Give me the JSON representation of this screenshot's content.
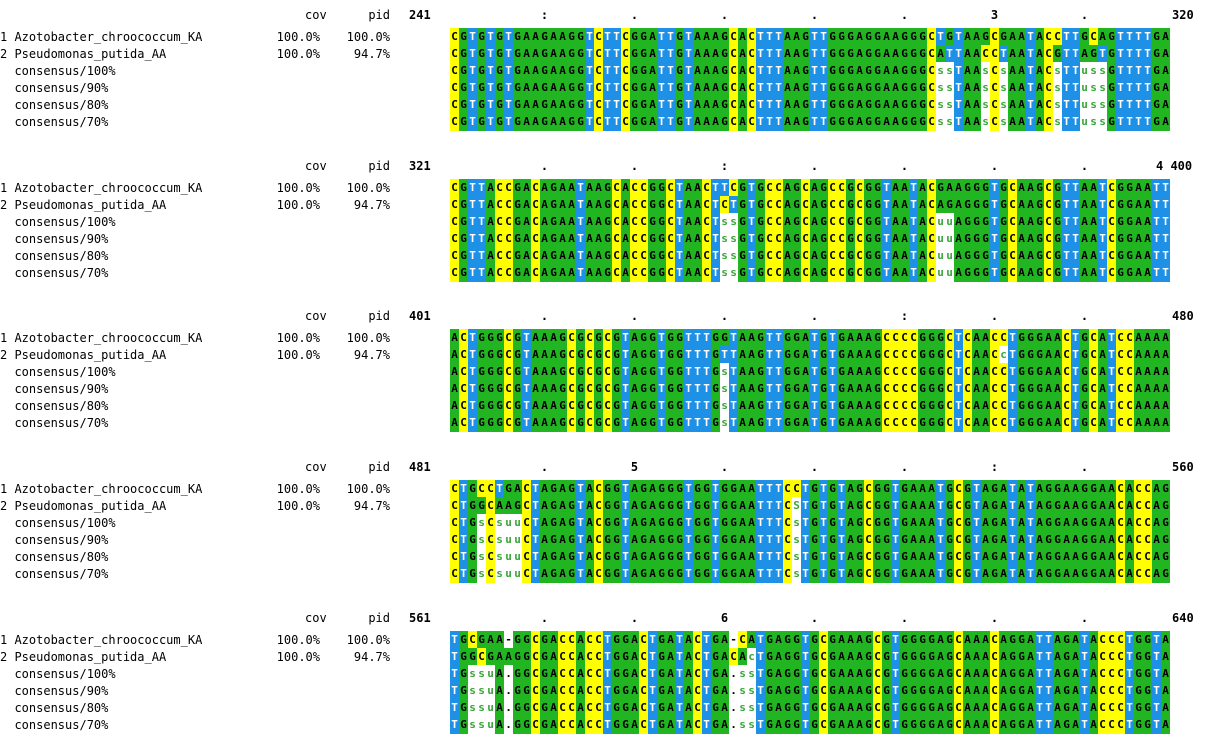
{
  "column_headers": {
    "cov": "cov",
    "pid": "pid"
  },
  "sequences": [
    {
      "label": "1 Azotobacter_chroococcum_KA",
      "cov": "100.0%",
      "pid": "100.0%"
    },
    {
      "label": "2 Pseudomonas_putida_AA",
      "cov": "100.0%",
      "pid": "94.7%"
    }
  ],
  "consensus_labels": [
    "consensus/100%",
    "consensus/90%",
    "consensus/80%",
    "consensus/70%"
  ],
  "blocks": [
    {
      "start": "241",
      "end": "320",
      "ruler": [
        {
          "pos": 11,
          "mark": ":"
        },
        {
          "pos": 21,
          "mark": "."
        },
        {
          "pos": 31,
          "mark": "."
        },
        {
          "pos": 41,
          "mark": "."
        },
        {
          "pos": 51,
          "mark": "."
        },
        {
          "pos": 61,
          "mark": "3"
        },
        {
          "pos": 71,
          "mark": "."
        }
      ],
      "rows": [
        "CGTGTGTGAAGAAGGTCTTCGGATTGTAAAGCACTTTAAGTTGGGAGGAAGGGCTGTAAGCGAATACCTTGCAGTTTTGA",
        "CGTGTGTGAAGAAGGTCTTCGGATTGTAAAGCACTTTAAGTTGGGAGGAAGGGCATTAACCTAATACGTTAGTGTTTTGA",
        "CGTGTGTGAAGAAGGTCTTCGGATTGTAAAGCACTTTAAGTTGGGAGGAAGGGCssTAAsCsAATACsTTussGTTTTGA",
        "CGTGTGTGAAGAAGGTCTTCGGATTGTAAAGCACTTTAAGTTGGGAGGAAGGGCssTAAsCsAATACsTTussGTTTTGA",
        "CGTGTGTGAAGAAGGTCTTCGGATTGTAAAGCACTTTAAGTTGGGAGGAAGGGCssTAAsCsAATACsTTussGTTTTGA",
        "CGTGTGTGAAGAAGGTCTTCGGATTGTAAAGCACTTTAAGTTGGGAGGAAGGGCssTAAsCsAATACsTTussGTTTTGA"
      ]
    },
    {
      "start": "321",
      "end": "4 400",
      "ruler": [
        {
          "pos": 11,
          "mark": "."
        },
        {
          "pos": 21,
          "mark": "."
        },
        {
          "pos": 31,
          "mark": ":"
        },
        {
          "pos": 41,
          "mark": "."
        },
        {
          "pos": 51,
          "mark": "."
        },
        {
          "pos": 61,
          "mark": "."
        },
        {
          "pos": 71,
          "mark": "."
        }
      ],
      "rows": [
        "CGTTACCGACAGAATAAGCACCGGCTAACTTCGTGCCAGCAGCCGCGGTAATACGAAGGGTGCAAGCGTTAATCGGAATT",
        "CGTTACCGACAGAATAAGCACCGGCTAACTCTGTGCCAGCAGCCGCGGTAATACAGAGGGTGCAAGCGTTAATCGGAATT",
        "CGTTACCGACAGAATAAGCACCGGCTAACTssGTGCCAGCAGCCGCGGTAATACuuAGGGTGCAAGCGTTAATCGGAATT",
        "CGTTACCGACAGAATAAGCACCGGCTAACTssGTGCCAGCAGCCGCGGTAATACuuAGGGTGCAAGCGTTAATCGGAATT",
        "CGTTACCGACAGAATAAGCACCGGCTAACTssGTGCCAGCAGCCGCGGTAATACuuAGGGTGCAAGCGTTAATCGGAATT",
        "CGTTACCGACAGAATAAGCACCGGCTAACTssGTGCCAGCAGCCGCGGTAATACuuAGGGTGCAAGCGTTAATCGGAATT"
      ]
    },
    {
      "start": "401",
      "end": "480",
      "ruler": [
        {
          "pos": 11,
          "mark": "."
        },
        {
          "pos": 21,
          "mark": "."
        },
        {
          "pos": 31,
          "mark": "."
        },
        {
          "pos": 41,
          "mark": "."
        },
        {
          "pos": 51,
          "mark": ":"
        },
        {
          "pos": 61,
          "mark": "."
        },
        {
          "pos": 71,
          "mark": "."
        }
      ],
      "rows": [
        "ACTGGGCGTAAAGCGCGCGTAGGTGGTTTGGTAAGTTGGATGTGAAAGCCCCGGGCTCAACCTGGGAACTGCATCCAAAA",
        "ACTGGGCGTAAAGCGCGCGTAGGTGGTTTGTTAAGTTGGATGTGAAAGCCCCGGGCTCAACcTGGGAACTGCATCCAAAA",
        "ACTGGGCGTAAAGCGCGCGTAGGTGGTTTGsTAAGTTGGATGTGAAAGCCCCGGGCTCAACCTGGGAACTGCATCCAAAA",
        "ACTGGGCGTAAAGCGCGCGTAGGTGGTTTGsTAAGTTGGATGTGAAAGCCCCGGGCTCAACCTGGGAACTGCATCCAAAA",
        "ACTGGGCGTAAAGCGCGCGTAGGTGGTTTGsTAAGTTGGATGTGAAAGCCCCGGGCTCAACCTGGGAACTGCATCCAAAA",
        "ACTGGGCGTAAAGCGCGCGTAGGTGGTTTGsTAAGTTGGATGTGAAAGCCCCGGGCTCAACCTGGGAACTGCATCCAAAA"
      ]
    },
    {
      "start": "481",
      "end": "560",
      "ruler": [
        {
          "pos": 11,
          "mark": "."
        },
        {
          "pos": 21,
          "mark": "5"
        },
        {
          "pos": 31,
          "mark": "."
        },
        {
          "pos": 41,
          "mark": "."
        },
        {
          "pos": 51,
          "mark": "."
        },
        {
          "pos": 61,
          "mark": ":"
        },
        {
          "pos": 71,
          "mark": "."
        }
      ],
      "rows": [
        "CTGCCTGACTAGAGTACGGTAGAGGGTGGTGGAATTTCCTGTGTAGCGGTGAAATGCGTAGATATAGGAAGGAACACCAG",
        "CTGGCAAGCTAGAGTACGGTAGAGGGTGGTGGAATTTCSTGTGTAGCGGTGAAATGCGTAGATATAGGAAGGAACACCAG",
        "CTGsCsuuCTAGAGTACGGTAGAGGGTGGTGGAATTTCsTGTGTAGCGGTGAAATGCGTAGATATAGGAAGGAACACCAG",
        "CTGsCsuuCTAGAGTACGGTAGAGGGTGGTGGAATTTCsTGTGTAGCGGTGAAATGCGTAGATATAGGAAGGAACACCAG",
        "CTGsCsuuCTAGAGTACGGTAGAGGGTGGTGGAATTTCsTGTGTAGCGGTGAAATGCGTAGATATAGGAAGGAACACCAG",
        "CTGsCsuuCTAGAGTACGGTAGAGGGTGGTGGAATTTCsTGTGTAGCGGTGAAATGCGTAGATATAGGAAGGAACACCAG"
      ]
    },
    {
      "start": "561",
      "end": "640",
      "ruler": [
        {
          "pos": 11,
          "mark": "."
        },
        {
          "pos": 21,
          "mark": "."
        },
        {
          "pos": 31,
          "mark": "6"
        },
        {
          "pos": 41,
          "mark": "."
        },
        {
          "pos": 51,
          "mark": "."
        },
        {
          "pos": 61,
          "mark": "."
        },
        {
          "pos": 71,
          "mark": "."
        }
      ],
      "rows": [
        "TGCGAA-GGCGACCACCTGGACTGATACTGA-CATGAGGTGCGAAAGCGTGGGGAGCAAACAGGATTAGATACCCTGGTA",
        "TGGCGAAGGCGACCACCTGGACTGATACTGACAcTGAGGTGCGAAAGCGTGGGGAGCAAACAGGATTAGATACCCTGGTA",
        "TGssuA.GGCGACCACCTGGACTGATACTGA.ssTGAGGTGCGAAAGCGTGGGGAGCAAACAGGATTAGATACCCTGGTA",
        "TGssuA.GGCGACCACCTGGACTGATACTGA.ssTGAGGTGCGAAAGCGTGGGGAGCAAACAGGATTAGATACCCTGGTA",
        "TGssuA.GGCGACCACCTGGACTGATACTGA.ssTGAGGTGCGAAAGCGTGGGGAGCAAACAGGATTAGATACCCTGGTA",
        "TGssuA.GGCGACCACCTGGACTGATACTGA.ssTGAGGTGCGAAAGCGTGGGGAGCAAACAGGATTAGATACCCTGGTA"
      ]
    }
  ]
}
